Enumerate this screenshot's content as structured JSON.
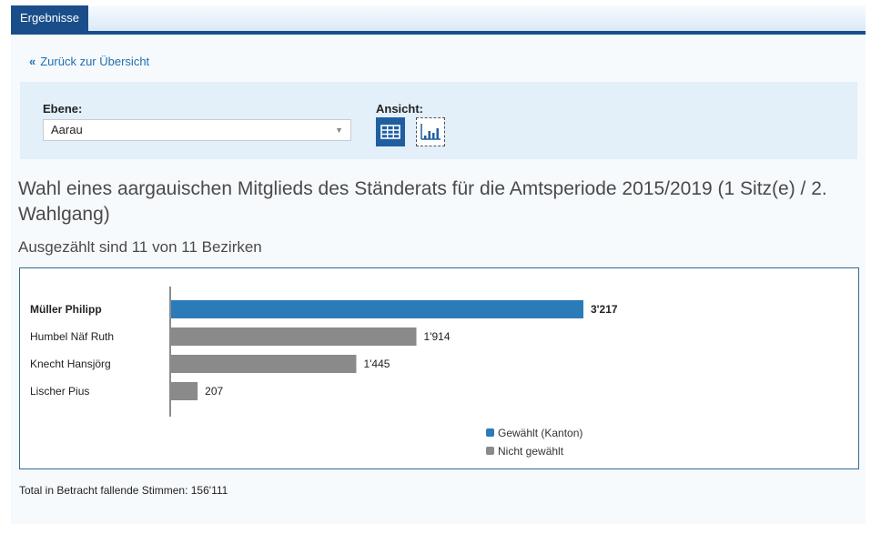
{
  "tab": {
    "label": "Ergebnisse"
  },
  "nav": {
    "back_label": "Zurück zur Übersicht"
  },
  "filter": {
    "level_label": "Ebene:",
    "level_value": "Aarau",
    "view_label": "Ansicht:"
  },
  "title": "Wahl eines aargauischen Mitglieds des Ständerats für die Amtsperiode 2015/2019 (1 Sitz(e) / 2. Wahlgang)",
  "subtitle": "Ausgezählt sind 11 von 11 Bezirken",
  "footer": "Total in Betracht fallende Stimmen: 156'111",
  "colors": {
    "accent": "#1a4e8a",
    "elected": "#2b7bb9",
    "not_elected": "#8a8a8a"
  },
  "chart_data": {
    "type": "bar",
    "orientation": "horizontal",
    "categories": [
      "Müller Philipp",
      "Humbel Näf Ruth",
      "Knecht Hansjörg",
      "Lischer Pius"
    ],
    "values": [
      3217,
      1914,
      1445,
      207
    ],
    "value_labels": [
      "3'217",
      "1'914",
      "1'445",
      "207"
    ],
    "status": [
      "elected",
      "not_elected",
      "not_elected",
      "not_elected"
    ],
    "legend": [
      {
        "key": "elected",
        "label": "Gewählt (Kanton)",
        "color": "#2b7bb9"
      },
      {
        "key": "not_elected",
        "label": "Nicht gewählt",
        "color": "#8a8a8a"
      }
    ],
    "legend_position": "bottom-right",
    "grid": false
  }
}
